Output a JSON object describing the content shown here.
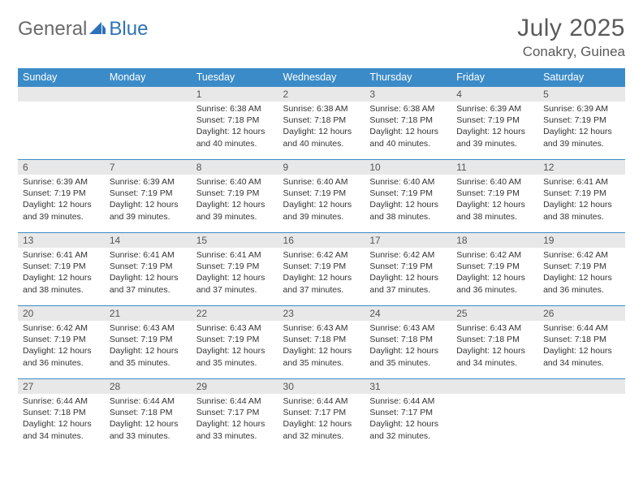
{
  "brand": {
    "part1": "General",
    "part2": "Blue"
  },
  "title": {
    "month": "July 2025",
    "location": "Conakry, Guinea"
  },
  "colors": {
    "header_bg": "#3b8bc8",
    "header_text": "#ffffff",
    "daynum_bg": "#e8e8e8",
    "row_border": "#3b8bc8",
    "body_text": "#333333",
    "brand_grey": "#6a6a6a",
    "brand_blue": "#2d72b8"
  },
  "weekdays": [
    "Sunday",
    "Monday",
    "Tuesday",
    "Wednesday",
    "Thursday",
    "Friday",
    "Saturday"
  ],
  "layout": {
    "first_weekday_index": 2,
    "days_in_month": 31,
    "cols": 7,
    "rows": 5
  },
  "days": [
    {
      "n": 1,
      "sunrise": "6:38 AM",
      "sunset": "7:18 PM",
      "daylight": "12 hours and 40 minutes."
    },
    {
      "n": 2,
      "sunrise": "6:38 AM",
      "sunset": "7:18 PM",
      "daylight": "12 hours and 40 minutes."
    },
    {
      "n": 3,
      "sunrise": "6:38 AM",
      "sunset": "7:18 PM",
      "daylight": "12 hours and 40 minutes."
    },
    {
      "n": 4,
      "sunrise": "6:39 AM",
      "sunset": "7:19 PM",
      "daylight": "12 hours and 39 minutes."
    },
    {
      "n": 5,
      "sunrise": "6:39 AM",
      "sunset": "7:19 PM",
      "daylight": "12 hours and 39 minutes."
    },
    {
      "n": 6,
      "sunrise": "6:39 AM",
      "sunset": "7:19 PM",
      "daylight": "12 hours and 39 minutes."
    },
    {
      "n": 7,
      "sunrise": "6:39 AM",
      "sunset": "7:19 PM",
      "daylight": "12 hours and 39 minutes."
    },
    {
      "n": 8,
      "sunrise": "6:40 AM",
      "sunset": "7:19 PM",
      "daylight": "12 hours and 39 minutes."
    },
    {
      "n": 9,
      "sunrise": "6:40 AM",
      "sunset": "7:19 PM",
      "daylight": "12 hours and 39 minutes."
    },
    {
      "n": 10,
      "sunrise": "6:40 AM",
      "sunset": "7:19 PM",
      "daylight": "12 hours and 38 minutes."
    },
    {
      "n": 11,
      "sunrise": "6:40 AM",
      "sunset": "7:19 PM",
      "daylight": "12 hours and 38 minutes."
    },
    {
      "n": 12,
      "sunrise": "6:41 AM",
      "sunset": "7:19 PM",
      "daylight": "12 hours and 38 minutes."
    },
    {
      "n": 13,
      "sunrise": "6:41 AM",
      "sunset": "7:19 PM",
      "daylight": "12 hours and 38 minutes."
    },
    {
      "n": 14,
      "sunrise": "6:41 AM",
      "sunset": "7:19 PM",
      "daylight": "12 hours and 37 minutes."
    },
    {
      "n": 15,
      "sunrise": "6:41 AM",
      "sunset": "7:19 PM",
      "daylight": "12 hours and 37 minutes."
    },
    {
      "n": 16,
      "sunrise": "6:42 AM",
      "sunset": "7:19 PM",
      "daylight": "12 hours and 37 minutes."
    },
    {
      "n": 17,
      "sunrise": "6:42 AM",
      "sunset": "7:19 PM",
      "daylight": "12 hours and 37 minutes."
    },
    {
      "n": 18,
      "sunrise": "6:42 AM",
      "sunset": "7:19 PM",
      "daylight": "12 hours and 36 minutes."
    },
    {
      "n": 19,
      "sunrise": "6:42 AM",
      "sunset": "7:19 PM",
      "daylight": "12 hours and 36 minutes."
    },
    {
      "n": 20,
      "sunrise": "6:42 AM",
      "sunset": "7:19 PM",
      "daylight": "12 hours and 36 minutes."
    },
    {
      "n": 21,
      "sunrise": "6:43 AM",
      "sunset": "7:19 PM",
      "daylight": "12 hours and 35 minutes."
    },
    {
      "n": 22,
      "sunrise": "6:43 AM",
      "sunset": "7:19 PM",
      "daylight": "12 hours and 35 minutes."
    },
    {
      "n": 23,
      "sunrise": "6:43 AM",
      "sunset": "7:18 PM",
      "daylight": "12 hours and 35 minutes."
    },
    {
      "n": 24,
      "sunrise": "6:43 AM",
      "sunset": "7:18 PM",
      "daylight": "12 hours and 35 minutes."
    },
    {
      "n": 25,
      "sunrise": "6:43 AM",
      "sunset": "7:18 PM",
      "daylight": "12 hours and 34 minutes."
    },
    {
      "n": 26,
      "sunrise": "6:44 AM",
      "sunset": "7:18 PM",
      "daylight": "12 hours and 34 minutes."
    },
    {
      "n": 27,
      "sunrise": "6:44 AM",
      "sunset": "7:18 PM",
      "daylight": "12 hours and 34 minutes."
    },
    {
      "n": 28,
      "sunrise": "6:44 AM",
      "sunset": "7:18 PM",
      "daylight": "12 hours and 33 minutes."
    },
    {
      "n": 29,
      "sunrise": "6:44 AM",
      "sunset": "7:17 PM",
      "daylight": "12 hours and 33 minutes."
    },
    {
      "n": 30,
      "sunrise": "6:44 AM",
      "sunset": "7:17 PM",
      "daylight": "12 hours and 32 minutes."
    },
    {
      "n": 31,
      "sunrise": "6:44 AM",
      "sunset": "7:17 PM",
      "daylight": "12 hours and 32 minutes."
    }
  ],
  "labels": {
    "sunrise": "Sunrise:",
    "sunset": "Sunset:",
    "daylight": "Daylight:"
  }
}
